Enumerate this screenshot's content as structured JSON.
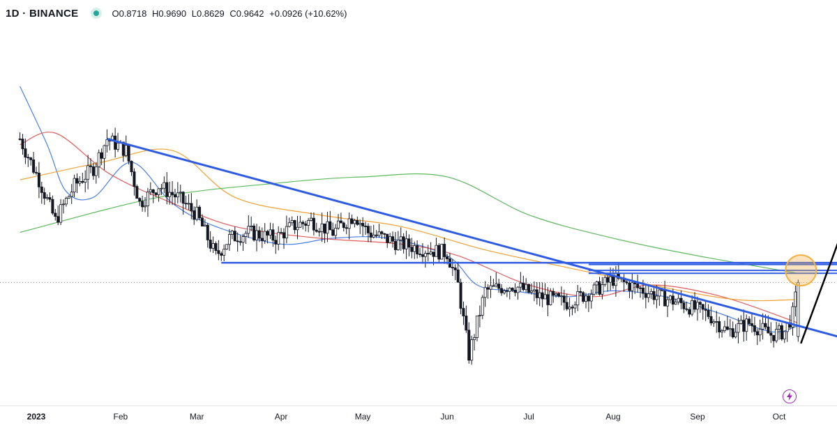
{
  "legend": {
    "symbol": "1D · BINANCE",
    "open": "O0.8718",
    "high": "H0.9690",
    "low": "L0.8629",
    "close": "C0.9642",
    "change": "+0.0926 (+10.62%)"
  },
  "icons": {
    "status": "status-dot-icon",
    "alert": "lightning-icon"
  },
  "colors": {
    "up": "#26a69a",
    "down": "#ef5350",
    "candle": "#131722",
    "ma_short": "#4a7fe0",
    "ma_mid": "#e55a5a",
    "ma_long": "#f0a030",
    "ma_longest": "#5cb85c",
    "trendline": "#2d5be3",
    "breakout_line": "#000000",
    "highlight": "#f5b042"
  },
  "chart_data": {
    "type": "candlestick",
    "timeframe": "1D",
    "exchange": "BINANCE",
    "x_axis": {
      "ticks": [
        "2023",
        "Feb",
        "Mar",
        "Apr",
        "May",
        "Jun",
        "Jul",
        "Aug",
        "Sep",
        "Oct"
      ],
      "range": [
        "2023-01-01",
        "2023-10-09"
      ]
    },
    "y_range": [
      0.78,
      1.4
    ],
    "grid": false,
    "last_close": 0.9642,
    "ohlc_path": [
      [
        "2022-12-26",
        1.21
      ],
      [
        "2023-01-02",
        1.14
      ],
      [
        "2023-01-08",
        1.07
      ],
      [
        "2023-01-15",
        1.13
      ],
      [
        "2023-01-22",
        1.16
      ],
      [
        "2023-01-27",
        1.21
      ],
      [
        "2023-02-03",
        1.19
      ],
      [
        "2023-02-08",
        1.1
      ],
      [
        "2023-02-15",
        1.13
      ],
      [
        "2023-02-22",
        1.11
      ],
      [
        "2023-03-01",
        1.08
      ],
      [
        "2023-03-08",
        1.01
      ],
      [
        "2023-03-13",
        1.04
      ],
      [
        "2023-03-20",
        1.05
      ],
      [
        "2023-03-30",
        1.04
      ],
      [
        "2023-04-05",
        1.06
      ],
      [
        "2023-04-12",
        1.07
      ],
      [
        "2023-04-20",
        1.05
      ],
      [
        "2023-04-28",
        1.08
      ],
      [
        "2023-05-03",
        1.05
      ],
      [
        "2023-05-15",
        1.03
      ],
      [
        "2023-05-25",
        1.02
      ],
      [
        "2023-06-01",
        1.015
      ],
      [
        "2023-06-05",
        0.96
      ],
      [
        "2023-06-09",
        0.84
      ],
      [
        "2023-06-15",
        0.95
      ],
      [
        "2023-06-25",
        0.96
      ],
      [
        "2023-07-05",
        0.94
      ],
      [
        "2023-07-15",
        0.93
      ],
      [
        "2023-07-25",
        0.95
      ],
      [
        "2023-08-01",
        0.97
      ],
      [
        "2023-08-10",
        0.955
      ],
      [
        "2023-08-18",
        0.94
      ],
      [
        "2023-08-25",
        0.93
      ],
      [
        "2023-09-05",
        0.91
      ],
      [
        "2023-09-12",
        0.88
      ],
      [
        "2023-09-20",
        0.895
      ],
      [
        "2023-09-28",
        0.875
      ],
      [
        "2023-10-03",
        0.88
      ],
      [
        "2023-10-06",
        0.91
      ],
      [
        "2023-10-08",
        0.9642
      ]
    ],
    "moving_averages": [
      {
        "color_key": "ma_short",
        "points": [
          [
            "2022-12-26",
            1.3
          ],
          [
            "2023-01-05",
            1.2
          ],
          [
            "2023-01-12",
            1.12
          ],
          [
            "2023-01-22",
            1.11
          ],
          [
            "2023-02-05",
            1.17
          ],
          [
            "2023-02-20",
            1.1
          ],
          [
            "2023-03-08",
            1.06
          ],
          [
            "2023-04-01",
            1.03
          ],
          [
            "2023-04-20",
            1.04
          ],
          [
            "2023-05-10",
            1.04
          ],
          [
            "2023-06-01",
            1.01
          ],
          [
            "2023-06-12",
            0.96
          ],
          [
            "2023-06-25",
            0.95
          ],
          [
            "2023-07-15",
            0.94
          ],
          [
            "2023-08-01",
            0.95
          ],
          [
            "2023-08-20",
            0.94
          ],
          [
            "2023-09-10",
            0.91
          ],
          [
            "2023-09-28",
            0.88
          ],
          [
            "2023-10-08",
            0.89
          ]
        ]
      },
      {
        "color_key": "ma_mid",
        "points": [
          [
            "2022-12-26",
            1.2
          ],
          [
            "2023-01-08",
            1.22
          ],
          [
            "2023-01-28",
            1.15
          ],
          [
            "2023-02-20",
            1.1
          ],
          [
            "2023-03-15",
            1.06
          ],
          [
            "2023-04-15",
            1.04
          ],
          [
            "2023-05-15",
            1.03
          ],
          [
            "2023-06-05",
            1.01
          ],
          [
            "2023-07-01",
            0.96
          ],
          [
            "2023-07-25",
            0.94
          ],
          [
            "2023-08-15",
            0.96
          ],
          [
            "2023-09-10",
            0.94
          ],
          [
            "2023-10-08",
            0.895
          ]
        ]
      },
      {
        "color_key": "ma_long",
        "points": [
          [
            "2022-12-26",
            1.14
          ],
          [
            "2023-01-25",
            1.17
          ],
          [
            "2023-02-20",
            1.19
          ],
          [
            "2023-03-15",
            1.11
          ],
          [
            "2023-04-15",
            1.08
          ],
          [
            "2023-05-15",
            1.06
          ],
          [
            "2023-06-15",
            1.02
          ],
          [
            "2023-07-15",
            0.99
          ],
          [
            "2023-08-15",
            0.96
          ],
          [
            "2023-09-15",
            0.935
          ],
          [
            "2023-10-08",
            0.935
          ]
        ]
      },
      {
        "color_key": "ma_longest",
        "points": [
          [
            "2022-12-26",
            1.05
          ],
          [
            "2023-02-15",
            1.11
          ],
          [
            "2023-04-01",
            1.135
          ],
          [
            "2023-05-01",
            1.145
          ],
          [
            "2023-06-01",
            1.145
          ],
          [
            "2023-07-01",
            1.08
          ],
          [
            "2023-08-01",
            1.04
          ],
          [
            "2023-09-01",
            1.01
          ],
          [
            "2023-10-08",
            0.98
          ]
        ]
      }
    ],
    "drawings": {
      "descending_trendline": {
        "from": [
          "2023-01-27",
          1.21
        ],
        "to": [
          "2023-10-28",
          0.865
        ]
      },
      "horizontal_support": {
        "from": "2023-03-10",
        "to": "2023-10-28",
        "value": 0.998
      },
      "resistance_band": {
        "from": "2023-07-23",
        "to": "2023-10-28",
        "values": [
          0.995,
          0.985,
          0.98
        ]
      },
      "breakout_line": {
        "from": [
          "2023-10-09",
          0.86
        ],
        "to": [
          "2023-10-28",
          1.1
        ]
      },
      "highlight_circle": {
        "center": [
          "2023-10-09",
          0.985
        ]
      }
    }
  }
}
